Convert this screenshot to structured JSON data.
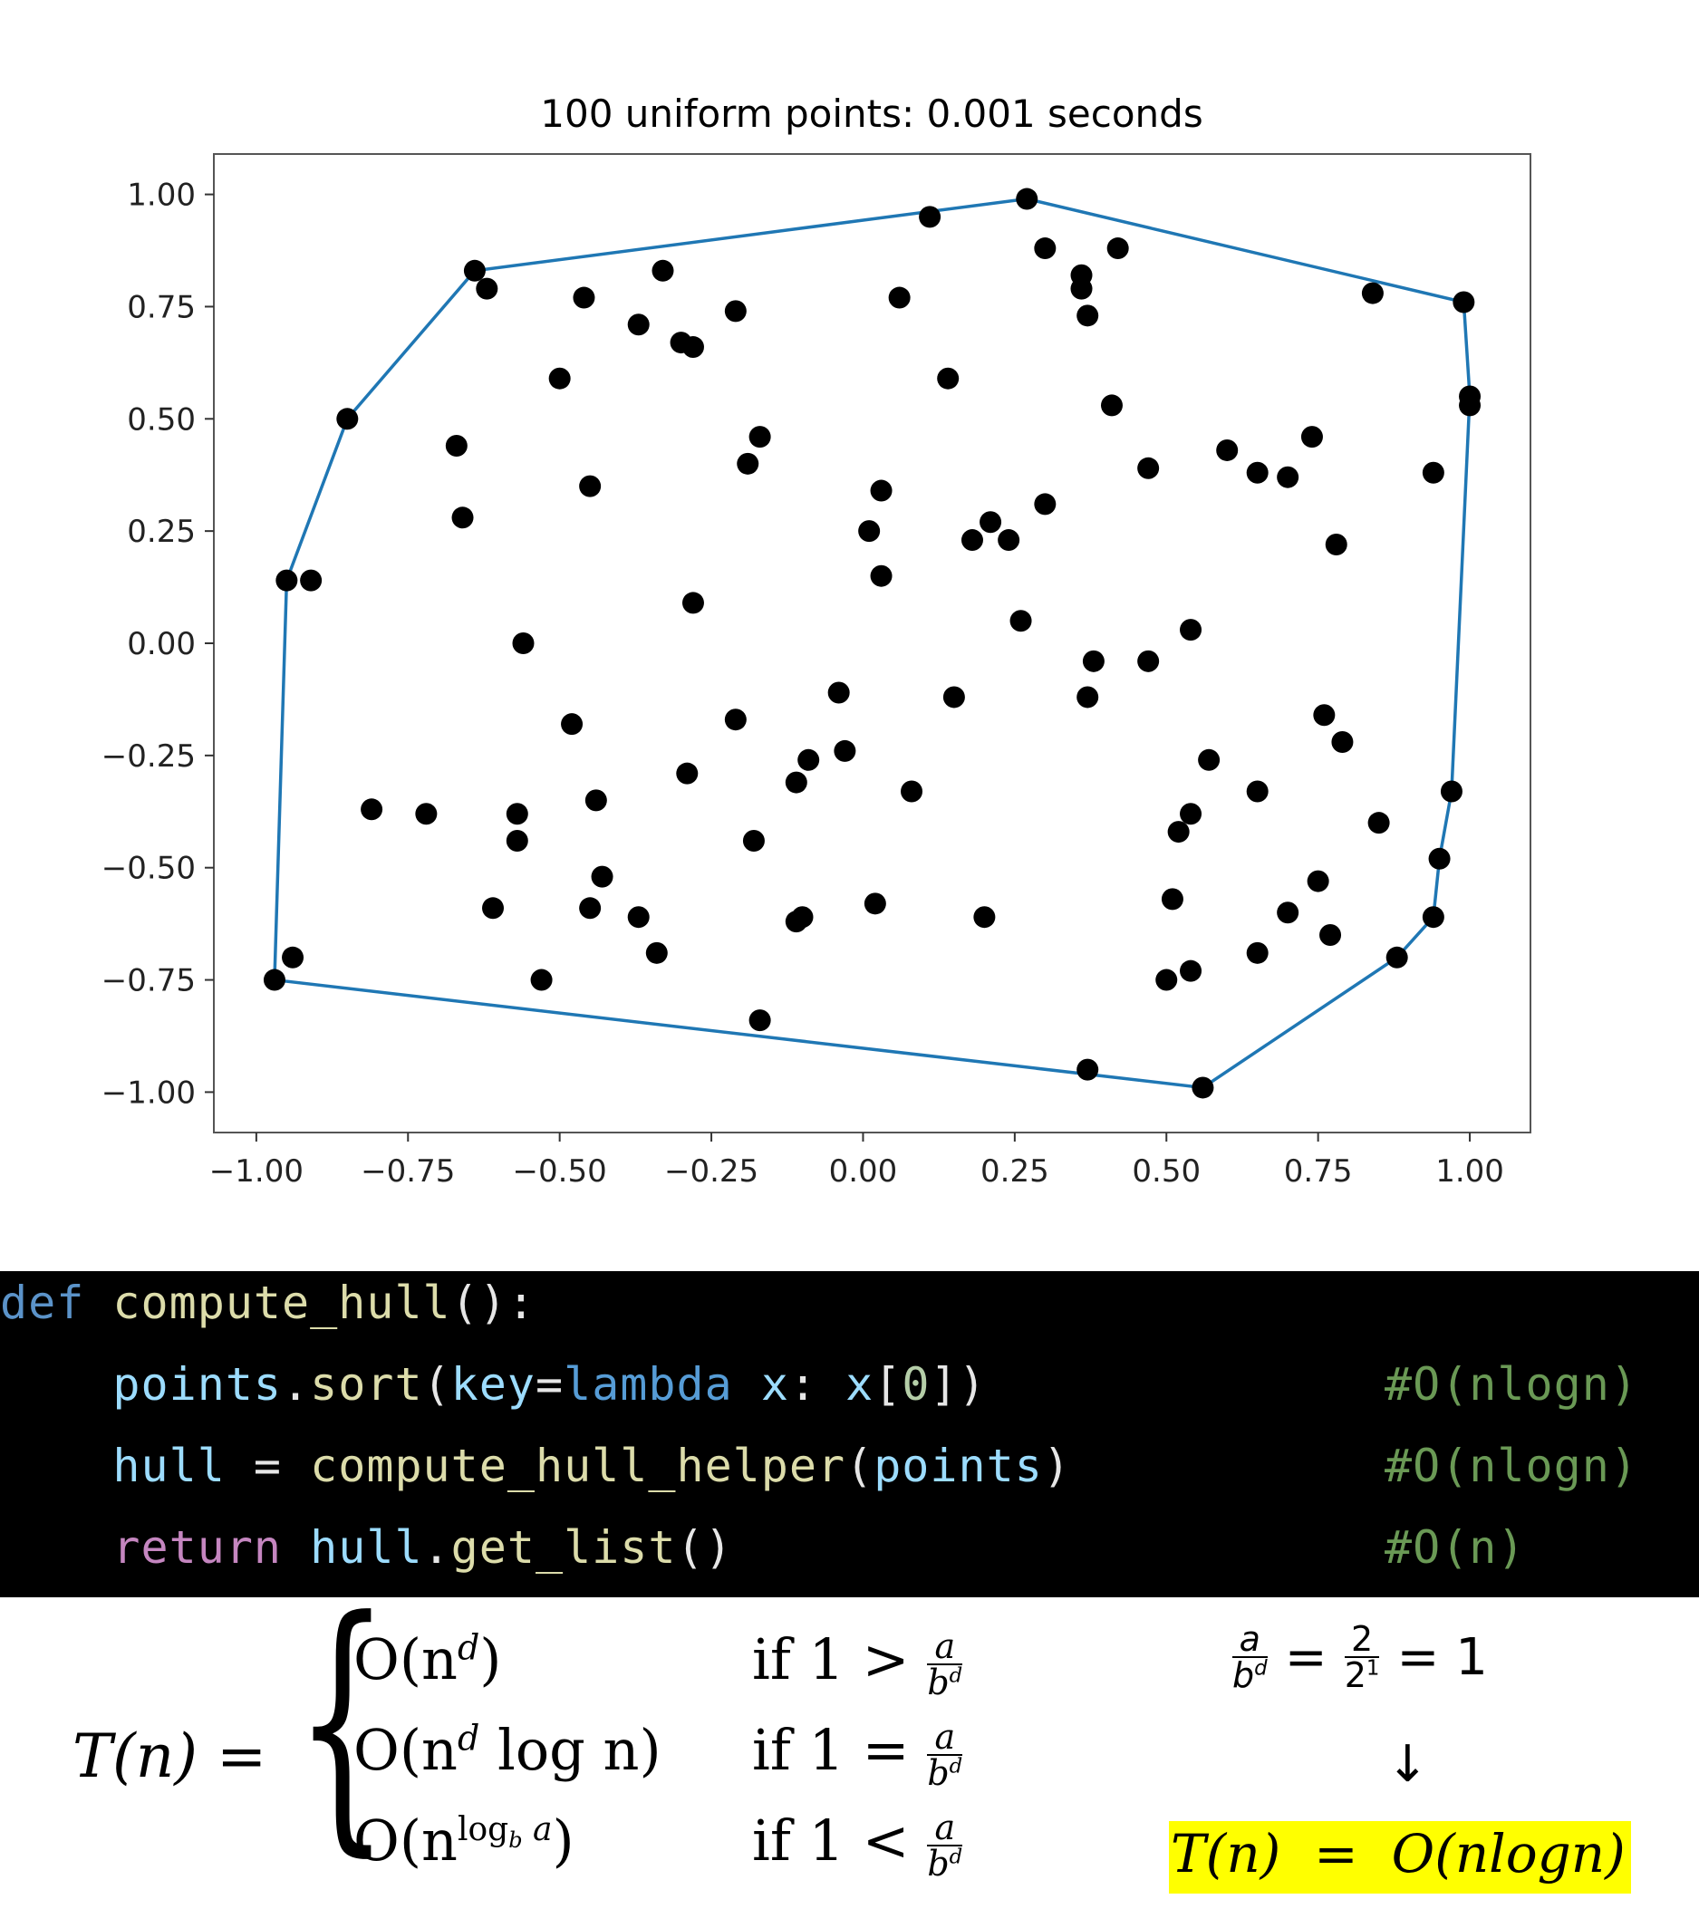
{
  "chart_data": {
    "type": "scatter",
    "title": "100 uniform points: 0.001 seconds",
    "xlim": [
      -1.07,
      1.1
    ],
    "ylim": [
      -1.09,
      1.09
    ],
    "xticks": [
      "−1.00",
      "−0.75",
      "−0.50",
      "−0.25",
      "0.00",
      "0.25",
      "0.50",
      "0.75",
      "1.00"
    ],
    "xtick_values": [
      -1.0,
      -0.75,
      -0.5,
      -0.25,
      0.0,
      0.25,
      0.5,
      0.75,
      1.0
    ],
    "yticks": [
      "1.00",
      "0.75",
      "0.50",
      "0.25",
      "0.00",
      "−0.25",
      "−0.50",
      "−0.75",
      "−1.00"
    ],
    "ytick_values": [
      1.0,
      0.75,
      0.5,
      0.25,
      0.0,
      -0.25,
      -0.5,
      -0.75,
      -1.0
    ],
    "points_color": "#000000",
    "hull_color": "#1f77b4",
    "points": [
      [
        0.27,
        0.99
      ],
      [
        0.11,
        0.95
      ],
      [
        0.3,
        0.88
      ],
      [
        0.42,
        0.88
      ],
      [
        0.36,
        0.82
      ],
      [
        0.36,
        0.79
      ],
      [
        0.37,
        0.73
      ],
      [
        0.84,
        0.78
      ],
      [
        0.99,
        0.76
      ],
      [
        -0.64,
        0.83
      ],
      [
        -0.62,
        0.79
      ],
      [
        -0.46,
        0.77
      ],
      [
        -0.33,
        0.83
      ],
      [
        -0.37,
        0.71
      ],
      [
        -0.3,
        0.67
      ],
      [
        -0.28,
        0.66
      ],
      [
        -0.21,
        0.74
      ],
      [
        0.06,
        0.77
      ],
      [
        -0.5,
        0.59
      ],
      [
        0.14,
        0.59
      ],
      [
        0.41,
        0.53
      ],
      [
        1.0,
        0.55
      ],
      [
        1.0,
        0.53
      ],
      [
        -0.85,
        0.5
      ],
      [
        -0.67,
        0.44
      ],
      [
        -0.17,
        0.46
      ],
      [
        -0.19,
        0.4
      ],
      [
        0.6,
        0.43
      ],
      [
        0.65,
        0.38
      ],
      [
        0.7,
        0.37
      ],
      [
        0.74,
        0.46
      ],
      [
        0.47,
        0.39
      ],
      [
        0.94,
        0.38
      ],
      [
        -0.45,
        0.35
      ],
      [
        0.03,
        0.34
      ],
      [
        -0.66,
        0.28
      ],
      [
        0.01,
        0.25
      ],
      [
        0.21,
        0.27
      ],
      [
        0.18,
        0.23
      ],
      [
        0.24,
        0.23
      ],
      [
        0.3,
        0.31
      ],
      [
        0.78,
        0.22
      ],
      [
        -0.95,
        0.14
      ],
      [
        -0.91,
        0.14
      ],
      [
        0.03,
        0.15
      ],
      [
        -0.28,
        0.09
      ],
      [
        0.26,
        0.05
      ],
      [
        -0.56,
        0.0
      ],
      [
        0.54,
        0.03
      ],
      [
        0.38,
        -0.04
      ],
      [
        0.47,
        -0.04
      ],
      [
        -0.04,
        -0.11
      ],
      [
        0.15,
        -0.12
      ],
      [
        0.37,
        -0.12
      ],
      [
        -0.48,
        -0.18
      ],
      [
        -0.21,
        -0.17
      ],
      [
        0.76,
        -0.16
      ],
      [
        0.79,
        -0.22
      ],
      [
        -0.03,
        -0.24
      ],
      [
        -0.09,
        -0.26
      ],
      [
        0.57,
        -0.26
      ],
      [
        -0.29,
        -0.29
      ],
      [
        -0.11,
        -0.31
      ],
      [
        0.08,
        -0.33
      ],
      [
        0.65,
        -0.33
      ],
      [
        0.97,
        -0.33
      ],
      [
        -0.81,
        -0.37
      ],
      [
        -0.72,
        -0.38
      ],
      [
        -0.57,
        -0.38
      ],
      [
        -0.44,
        -0.35
      ],
      [
        0.54,
        -0.38
      ],
      [
        0.52,
        -0.42
      ],
      [
        0.85,
        -0.4
      ],
      [
        -0.57,
        -0.44
      ],
      [
        -0.18,
        -0.44
      ],
      [
        0.95,
        -0.48
      ],
      [
        -0.43,
        -0.52
      ],
      [
        0.75,
        -0.53
      ],
      [
        -0.61,
        -0.59
      ],
      [
        -0.45,
        -0.59
      ],
      [
        -0.37,
        -0.61
      ],
      [
        -0.1,
        -0.61
      ],
      [
        -0.11,
        -0.62
      ],
      [
        0.02,
        -0.58
      ],
      [
        0.2,
        -0.61
      ],
      [
        0.51,
        -0.57
      ],
      [
        0.7,
        -0.6
      ],
      [
        0.77,
        -0.65
      ],
      [
        0.94,
        -0.61
      ],
      [
        -0.34,
        -0.69
      ],
      [
        0.65,
        -0.69
      ],
      [
        0.88,
        -0.7
      ],
      [
        -0.94,
        -0.7
      ],
      [
        -0.97,
        -0.75
      ],
      [
        -0.53,
        -0.75
      ],
      [
        0.5,
        -0.75
      ],
      [
        0.54,
        -0.73
      ],
      [
        -0.17,
        -0.84
      ],
      [
        0.37,
        -0.95
      ],
      [
        0.56,
        -0.99
      ]
    ],
    "hull": [
      [
        -0.97,
        -0.75
      ],
      [
        -0.95,
        0.14
      ],
      [
        -0.85,
        0.5
      ],
      [
        -0.64,
        0.83
      ],
      [
        0.27,
        0.99
      ],
      [
        0.99,
        0.76
      ],
      [
        1.0,
        0.55
      ],
      [
        0.97,
        -0.33
      ],
      [
        0.95,
        -0.48
      ],
      [
        0.94,
        -0.61
      ],
      [
        0.88,
        -0.7
      ],
      [
        0.56,
        -0.99
      ],
      [
        -0.97,
        -0.75
      ]
    ]
  },
  "code": {
    "lines": [
      [
        {
          "t": "def",
          "c": "tok-keyword"
        },
        {
          "t": " compute_hull",
          "c": "tok-func"
        },
        {
          "t": "():",
          "c": "tok-punct"
        }
      ],
      [
        {
          "t": "    points",
          "c": "tok-var"
        },
        {
          "t": ".",
          "c": "tok-punct"
        },
        {
          "t": "sort",
          "c": "tok-func"
        },
        {
          "t": "(",
          "c": "tok-punct"
        },
        {
          "t": "key",
          "c": "tok-var"
        },
        {
          "t": "=",
          "c": "tok-punct"
        },
        {
          "t": "lambda",
          "c": "tok-builtin"
        },
        {
          "t": " x",
          "c": "tok-var"
        },
        {
          "t": ": ",
          "c": "tok-punct"
        },
        {
          "t": "x",
          "c": "tok-var"
        },
        {
          "t": "[",
          "c": "tok-punct"
        },
        {
          "t": "0",
          "c": "tok-num"
        },
        {
          "t": "])",
          "c": "tok-punct"
        }
      ],
      [
        {
          "t": "    hull",
          "c": "tok-var"
        },
        {
          "t": " = ",
          "c": "tok-punct"
        },
        {
          "t": "compute_hull_helper",
          "c": "tok-func"
        },
        {
          "t": "(",
          "c": "tok-punct"
        },
        {
          "t": "points",
          "c": "tok-var"
        },
        {
          "t": ")",
          "c": "tok-punct"
        }
      ],
      [
        {
          "t": "    return",
          "c": "tok-return"
        },
        {
          "t": " hull",
          "c": "tok-var"
        },
        {
          "t": ".",
          "c": "tok-punct"
        },
        {
          "t": "get_list",
          "c": "tok-func"
        },
        {
          "t": "()",
          "c": "tok-punct"
        }
      ]
    ],
    "comments": [
      "#O(nlogn)",
      "#O(nlogn)",
      "#O(n)"
    ]
  },
  "math": {
    "lhs": "T(n) =",
    "cases": [
      {
        "expr": "O(n",
        "sup": "d",
        "tail": ")",
        "cond": "if 1 >"
      },
      {
        "expr": "O(n",
        "sup": "d",
        "tail": " log n)",
        "cond": "if 1 ="
      },
      {
        "expr": "O(n",
        "sup": "log",
        "sub": "b",
        "supTail": " a",
        "tail": ")",
        "cond": "if 1 <"
      }
    ],
    "frac_num": "a",
    "frac_den": "b",
    "frac_den_sup": "d",
    "calc": {
      "num1": "a",
      "den1": "b",
      "den1_sup": "d",
      "eq": "=",
      "num2": "2",
      "den2": "2",
      "den2_sup": "1",
      "result": "= 1",
      "arrow": "↓"
    },
    "final": "T(n)  =  O(nlogn)"
  },
  "colors": {
    "hull": "#1f77b4",
    "highlight": "#ffff00",
    "code_bg": "#000000"
  }
}
